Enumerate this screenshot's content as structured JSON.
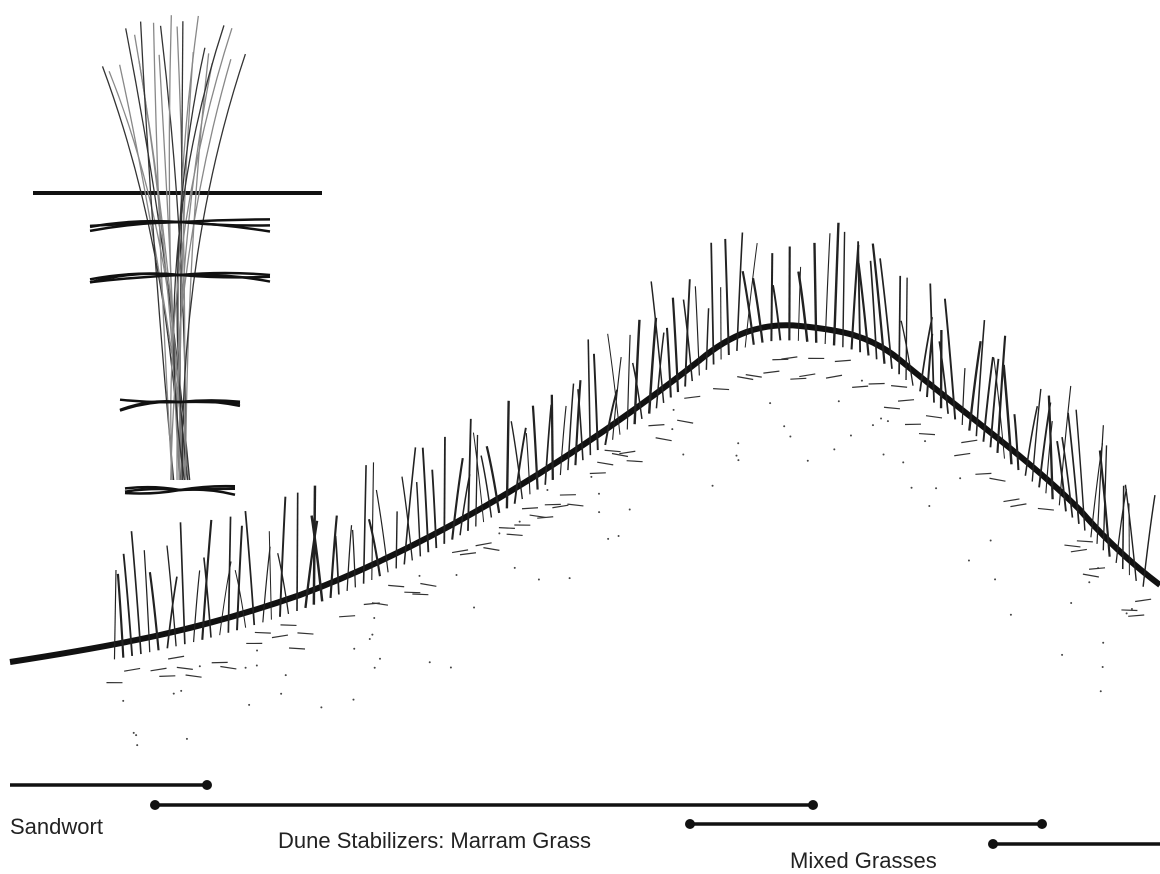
{
  "zones": [
    {
      "label": "Sandwort"
    },
    {
      "label": "Dune Stabilizers: Marram Grass"
    },
    {
      "label": "Mixed Grasses"
    }
  ]
}
